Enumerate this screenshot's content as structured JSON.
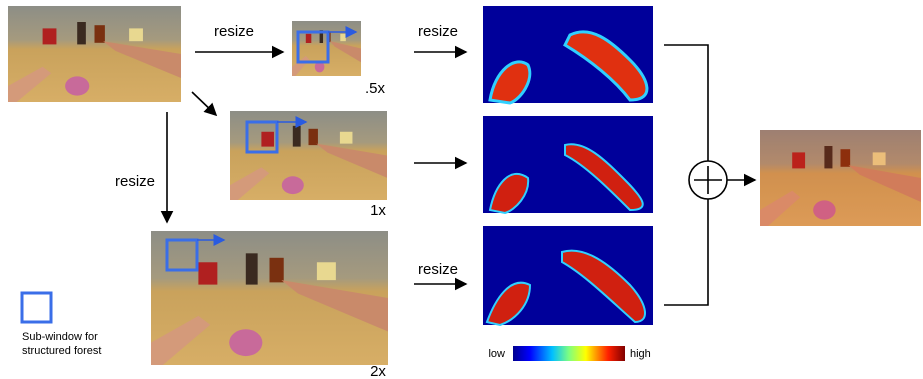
{
  "edges": [
    {
      "label": "resize"
    },
    {
      "label": "resize"
    },
    {
      "label": "resize"
    },
    {
      "label": "resize"
    }
  ],
  "scales": [
    ".5x",
    "1x",
    "2x"
  ],
  "legend": {
    "label": [
      "Sub-window for",
      "structured forest"
    ]
  },
  "colorbar": {
    "low": "low",
    "high": "high"
  }
}
